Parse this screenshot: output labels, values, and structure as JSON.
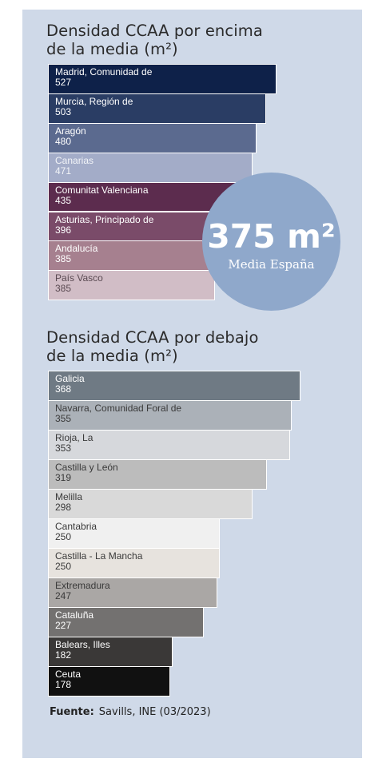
{
  "chart_data": [
    {
      "type": "bar",
      "orientation": "horizontal",
      "title": [
        "Densidad CCAA por encima",
        "de la media (m²)"
      ],
      "categories": [
        "Madrid, Comunidad de",
        "Murcia, Región de",
        "Aragón",
        "Canarias",
        "Comunitat Valenciana",
        "Asturias, Principado de",
        "Andalucía",
        "País Vasco"
      ],
      "values": [
        527,
        503,
        480,
        471,
        435,
        396,
        385,
        385
      ],
      "colors": [
        "#0e2149",
        "#2a3d64",
        "#5b6a8f",
        "#a3acc8",
        "#5c2c4e",
        "#7a4b69",
        "#a6808f",
        "#d1bdc6"
      ],
      "label_colors": [
        "#ffffff",
        "#ffffff",
        "#ffffff",
        "#f2f4f8",
        "#ffffff",
        "#ffffff",
        "#ffffff",
        "#5a4a52"
      ]
    },
    {
      "type": "bar",
      "orientation": "horizontal",
      "title": [
        "Densidad CCAA por debajo",
        "de la media (m²)"
      ],
      "categories": [
        "Galicia",
        "Navarra, Comunidad Foral de",
        "Rioja, La",
        "Castilla y León",
        "Melilla",
        "Cantabria",
        "Castilla - La Mancha",
        "Extremadura",
        "Cataluña",
        "Balears, Illes",
        "Ceuta"
      ],
      "values": [
        368,
        355,
        353,
        319,
        298,
        250,
        250,
        247,
        227,
        182,
        178
      ],
      "colors": [
        "#6f7a84",
        "#abb1b8",
        "#d6d8dc",
        "#bcbcbc",
        "#d9d9d9",
        "#f0f0f0",
        "#e7e3de",
        "#aaa7a5",
        "#737170",
        "#3a3837",
        "#111111"
      ],
      "label_colors": [
        "#ffffff",
        "#3a3a3a",
        "#3a3a3a",
        "#3a3a3a",
        "#3a3a3a",
        "#3a3a3a",
        "#3a3a3a",
        "#3a3a3a",
        "#ffffff",
        "#ffffff",
        "#ffffff"
      ]
    }
  ],
  "highlight": {
    "value": "375 m²",
    "label": "Media España"
  },
  "source": {
    "label": "Fuente:",
    "text": "Savills, INE (03/2023)"
  }
}
